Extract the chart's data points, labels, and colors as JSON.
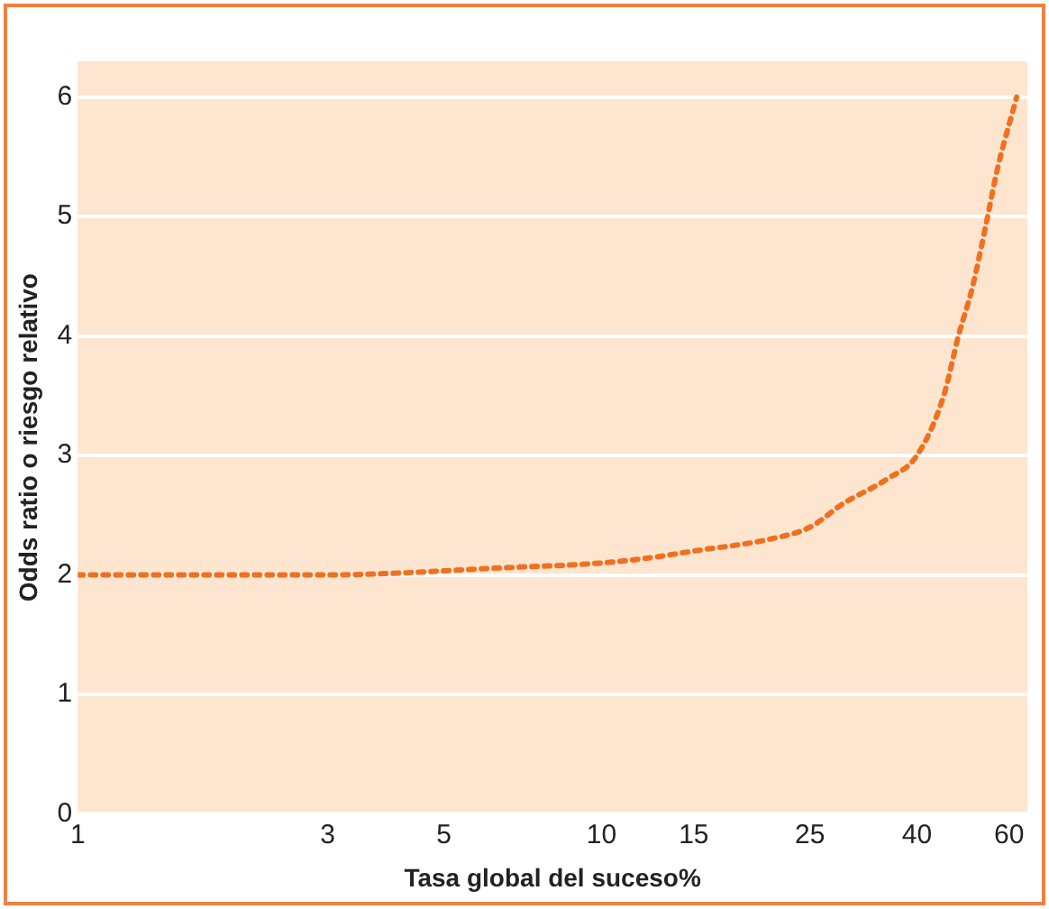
{
  "chart_data": {
    "type": "line",
    "xlabel": "Tasa global del suceso%",
    "ylabel": "Odds ratio o riesgo relativo",
    "log": "x",
    "xlim": [
      1,
      65
    ],
    "xticks": [
      1,
      3,
      5,
      10,
      15,
      25,
      40,
      60
    ],
    "ylim": [
      0,
      6.3
    ],
    "yticks": [
      0,
      1,
      2,
      3,
      4,
      5,
      6
    ],
    "grid": "y",
    "legend": false,
    "marker": "none",
    "line_style": "dotted",
    "series": [
      {
        "color": "#f07020",
        "x": [
          1,
          3,
          6.5,
          10,
          12.7,
          15,
          21,
          25,
          29,
          35,
          40,
          45,
          48,
          51,
          54,
          57,
          62
        ],
        "values": [
          2,
          2,
          2.06,
          2.1,
          2.15,
          2.2,
          2.3,
          2.4,
          2.6,
          2.8,
          3,
          3.5,
          4,
          4.4,
          4.9,
          5.4,
          6
        ]
      }
    ]
  }
}
